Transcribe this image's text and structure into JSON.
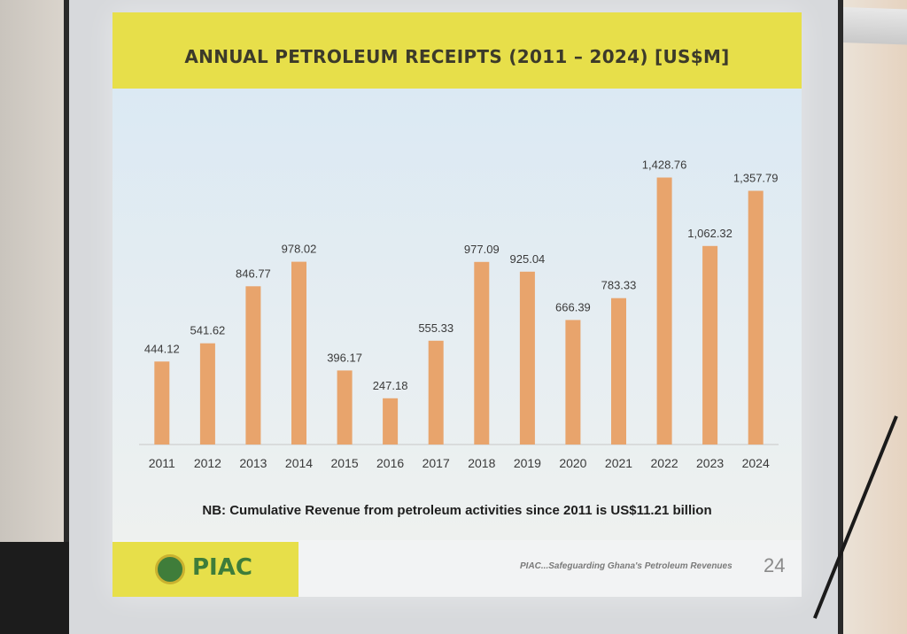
{
  "slide": {
    "note": "NB: Cumulative Revenue from petroleum activities since 2011 is US$11.21 billion",
    "logo_text": "PIAC",
    "tagline": "PIAC...Safeguarding Ghana's Petroleum Revenues",
    "page_number": "24"
  },
  "colors": {
    "bar": "#e8a46c",
    "band": "#e7df4a"
  },
  "chart_data": {
    "type": "bar",
    "title": "ANNUAL PETROLEUM RECEIPTS (2011 – 2024) [US$M]",
    "categories": [
      "2011",
      "2012",
      "2013",
      "2014",
      "2015",
      "2016",
      "2017",
      "2018",
      "2019",
      "2020",
      "2021",
      "2022",
      "2023",
      "2024"
    ],
    "values": [
      444.12,
      541.62,
      846.77,
      978.02,
      396.17,
      247.18,
      555.33,
      977.09,
      925.04,
      666.39,
      783.33,
      1428.76,
      1062.32,
      1357.79
    ],
    "labels": [
      "444.12",
      "541.62",
      "846.77",
      "978.02",
      "396.17",
      "247.18",
      "555.33",
      "977.09",
      "925.04",
      "666.39",
      "783.33",
      "1,428.76",
      "1,062.32",
      "1,357.79"
    ],
    "ylim": [
      0,
      1450
    ],
    "grid": false,
    "legend": "none"
  }
}
